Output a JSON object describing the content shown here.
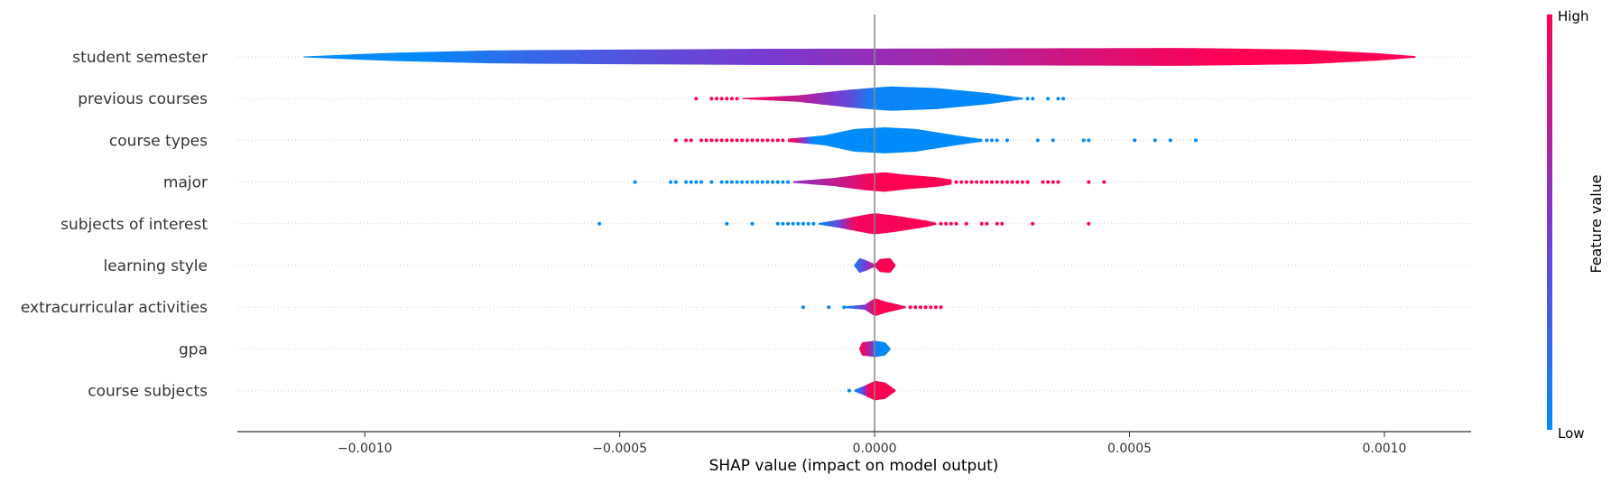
{
  "chart_data": {
    "type": "scatter",
    "subtype": "shap-violin-summary",
    "xlabel": "SHAP value (impact on model output)",
    "xlim": [
      -0.00125,
      0.00117
    ],
    "x_ticks": [
      -0.001,
      -0.0005,
      0.0,
      0.0005,
      0.001
    ],
    "x_tick_labels": [
      "−0.0010",
      "−0.0005",
      "0.0000",
      "0.0005",
      "0.0010"
    ],
    "grid": "dotted horizontal lines per feature",
    "colorbar": {
      "title": "Feature value",
      "high_label": "High",
      "low_label": "Low",
      "low_color": "#008bfb",
      "high_color": "#ff0052"
    },
    "features": [
      {
        "name": "student semester",
        "range": [
          -0.00112,
          0.00106
        ],
        "profile": [
          [
            -0.00112,
            0.03
          ],
          [
            -0.00095,
            0.25
          ],
          [
            -0.00075,
            0.4
          ],
          [
            -0.0005,
            0.45
          ],
          [
            -0.0002,
            0.5
          ],
          [
            0.0002,
            0.52
          ],
          [
            0.0006,
            0.55
          ],
          [
            0.00085,
            0.45
          ],
          [
            0.001,
            0.2
          ],
          [
            0.00106,
            0.05
          ]
        ],
        "color_profile": [
          [
            -0.00112,
            0.0
          ],
          [
            -0.0009,
            0.0
          ],
          [
            -0.0007,
            0.2
          ],
          [
            -0.0004,
            0.4
          ],
          [
            -0.0001,
            0.55
          ],
          [
            0.0002,
            0.7
          ],
          [
            0.0005,
            0.9
          ],
          [
            0.0007,
            1.0
          ],
          [
            0.00106,
            1.0
          ]
        ],
        "points": []
      },
      {
        "name": "previous courses",
        "range": [
          -0.00026,
          0.00029
        ],
        "profile": [
          [
            -0.00026,
            0.03
          ],
          [
            -0.00015,
            0.2
          ],
          [
            -5e-05,
            0.55
          ],
          [
            3e-05,
            0.75
          ],
          [
            0.00012,
            0.65
          ],
          [
            0.00022,
            0.35
          ],
          [
            0.00029,
            0.05
          ]
        ],
        "color_profile": [
          [
            -0.00026,
            1.0
          ],
          [
            -0.00015,
            0.75
          ],
          [
            -5e-05,
            0.4
          ],
          [
            0.0,
            0.05
          ],
          [
            0.00029,
            0.0
          ]
        ],
        "points": [
          [
            -0.00035,
            1
          ],
          [
            -0.00032,
            1
          ],
          [
            -0.00031,
            1
          ],
          [
            -0.0003,
            1
          ],
          [
            -0.00029,
            1
          ],
          [
            -0.00028,
            1
          ],
          [
            -0.00027,
            1
          ],
          [
            0.0003,
            0
          ],
          [
            0.00031,
            0
          ],
          [
            0.00034,
            0
          ],
          [
            0.00036,
            0
          ],
          [
            0.00037,
            0
          ]
        ]
      },
      {
        "name": "course types",
        "range": [
          -0.00017,
          0.00021
        ],
        "profile": [
          [
            -0.00017,
            0.1
          ],
          [
            -0.0001,
            0.3
          ],
          [
            -4e-05,
            0.7
          ],
          [
            2e-05,
            0.8
          ],
          [
            8e-05,
            0.7
          ],
          [
            0.00016,
            0.3
          ],
          [
            0.00021,
            0.08
          ]
        ],
        "color_profile": [
          [
            -0.00017,
            1.0
          ],
          [
            -0.00015,
            0.8
          ],
          [
            -0.00012,
            0.0
          ],
          [
            0.00021,
            0.0
          ]
        ],
        "points": [
          [
            -0.00039,
            1
          ],
          [
            -0.00037,
            1
          ],
          [
            -0.00036,
            1
          ],
          [
            -0.00034,
            1
          ],
          [
            -0.00033,
            1
          ],
          [
            -0.00032,
            1
          ],
          [
            -0.00031,
            1
          ],
          [
            -0.0003,
            1
          ],
          [
            -0.00029,
            1
          ],
          [
            -0.00028,
            1
          ],
          [
            -0.00027,
            1
          ],
          [
            -0.00026,
            1
          ],
          [
            -0.00025,
            1
          ],
          [
            -0.00024,
            1
          ],
          [
            -0.00023,
            1
          ],
          [
            -0.00022,
            1
          ],
          [
            -0.00021,
            1
          ],
          [
            -0.0002,
            1
          ],
          [
            -0.00019,
            1
          ],
          [
            -0.00018,
            1
          ],
          [
            0.00022,
            0
          ],
          [
            0.00023,
            0
          ],
          [
            0.00024,
            0
          ],
          [
            0.00026,
            0
          ],
          [
            0.00032,
            0
          ],
          [
            0.00035,
            0
          ],
          [
            0.00041,
            0
          ],
          [
            0.00042,
            0
          ],
          [
            0.00051,
            0
          ],
          [
            0.00055,
            0
          ],
          [
            0.00058,
            0
          ],
          [
            0.00063,
            0
          ]
        ]
      },
      {
        "name": "major",
        "range": [
          -0.00016,
          0.00015
        ],
        "profile": [
          [
            -0.00016,
            0.05
          ],
          [
            -8e-05,
            0.25
          ],
          [
            -2e-05,
            0.5
          ],
          [
            2e-05,
            0.6
          ],
          [
            6e-05,
            0.45
          ],
          [
            0.00012,
            0.3
          ],
          [
            0.00015,
            0.15
          ]
        ],
        "color_profile": [
          [
            -0.00016,
            0.55
          ],
          [
            -0.0001,
            0.7
          ],
          [
            -4e-05,
            0.85
          ],
          [
            0.0,
            1.0
          ],
          [
            0.00015,
            1.0
          ]
        ],
        "points": [
          [
            -0.00047,
            0
          ],
          [
            -0.0004,
            0
          ],
          [
            -0.00039,
            0
          ],
          [
            -0.00037,
            0
          ],
          [
            -0.00036,
            0
          ],
          [
            -0.00035,
            0
          ],
          [
            -0.00034,
            0
          ],
          [
            -0.00032,
            0
          ],
          [
            -0.0003,
            0
          ],
          [
            -0.00029,
            0
          ],
          [
            -0.00028,
            0
          ],
          [
            -0.00027,
            0
          ],
          [
            -0.00026,
            0
          ],
          [
            -0.00025,
            0
          ],
          [
            -0.00024,
            0
          ],
          [
            -0.00023,
            0
          ],
          [
            -0.00022,
            0
          ],
          [
            -0.00021,
            0
          ],
          [
            -0.0002,
            0
          ],
          [
            -0.00019,
            0
          ],
          [
            -0.00018,
            0
          ],
          [
            -0.00017,
            0
          ],
          [
            0.00016,
            1
          ],
          [
            0.00017,
            1
          ],
          [
            0.00018,
            1
          ],
          [
            0.00019,
            1
          ],
          [
            0.0002,
            1
          ],
          [
            0.00021,
            1
          ],
          [
            0.00022,
            1
          ],
          [
            0.00023,
            1
          ],
          [
            0.00024,
            1
          ],
          [
            0.00025,
            1
          ],
          [
            0.00026,
            1
          ],
          [
            0.00027,
            1
          ],
          [
            0.00028,
            1
          ],
          [
            0.00029,
            1
          ],
          [
            0.0003,
            1
          ],
          [
            0.00033,
            1
          ],
          [
            0.00034,
            1
          ],
          [
            0.00035,
            1
          ],
          [
            0.00036,
            1
          ],
          [
            0.00042,
            1
          ],
          [
            0.00045,
            1
          ]
        ]
      },
      {
        "name": "subjects of interest",
        "range": [
          -0.00011,
          0.00012
        ],
        "profile": [
          [
            -0.00011,
            0.05
          ],
          [
            -7e-05,
            0.25
          ],
          [
            -2e-05,
            0.55
          ],
          [
            0.0,
            0.65
          ],
          [
            4e-05,
            0.5
          ],
          [
            0.0001,
            0.2
          ],
          [
            0.00012,
            0.06
          ]
        ],
        "color_profile": [
          [
            -0.00011,
            0.0
          ],
          [
            -8e-05,
            0.3
          ],
          [
            -4e-05,
            0.95
          ],
          [
            0.00012,
            1.0
          ]
        ],
        "points": [
          [
            -0.00054,
            0
          ],
          [
            -0.00029,
            0
          ],
          [
            -0.00024,
            0
          ],
          [
            -0.00019,
            0
          ],
          [
            -0.00018,
            0
          ],
          [
            -0.00017,
            0
          ],
          [
            -0.00016,
            0
          ],
          [
            -0.00015,
            0
          ],
          [
            -0.00014,
            0
          ],
          [
            -0.00013,
            0
          ],
          [
            -0.00012,
            0
          ],
          [
            0.00013,
            1
          ],
          [
            0.00014,
            1
          ],
          [
            0.00015,
            1
          ],
          [
            0.00016,
            1
          ],
          [
            0.00018,
            1
          ],
          [
            0.00021,
            1
          ],
          [
            0.00022,
            1
          ],
          [
            0.00024,
            1
          ],
          [
            0.00025,
            1
          ],
          [
            0.00031,
            1
          ],
          [
            0.00042,
            1
          ]
        ]
      },
      {
        "name": "learning style",
        "range": [
          -4e-05,
          4e-05
        ],
        "profile": [
          [
            -4e-05,
            0.05
          ],
          [
            -3e-05,
            0.45
          ],
          [
            -2e-05,
            0.35
          ],
          [
            0.0,
            0.08
          ],
          [
            1e-05,
            0.4
          ],
          [
            3e-05,
            0.45
          ],
          [
            4e-05,
            0.05
          ]
        ],
        "color_profile": [
          [
            -4e-05,
            0.1
          ],
          [
            -2e-05,
            0.45
          ],
          [
            0.0,
            0.8
          ],
          [
            1e-05,
            1.0
          ],
          [
            4e-05,
            1.0
          ]
        ],
        "points": []
      },
      {
        "name": "extracurricular activities",
        "range": [
          -6e-05,
          6e-05
        ],
        "profile": [
          [
            -6e-05,
            0.05
          ],
          [
            -2e-05,
            0.15
          ],
          [
            0.0,
            0.55
          ],
          [
            2e-05,
            0.35
          ],
          [
            6e-05,
            0.05
          ]
        ],
        "color_profile": [
          [
            -6e-05,
            0.0
          ],
          [
            -2e-05,
            0.5
          ],
          [
            0.0,
            1.0
          ],
          [
            6e-05,
            1.0
          ]
        ],
        "points": [
          [
            -0.00014,
            0
          ],
          [
            -9e-05,
            0
          ],
          [
            -6e-05,
            0
          ],
          [
            7e-05,
            1
          ],
          [
            8e-05,
            1
          ],
          [
            9e-05,
            1
          ],
          [
            0.0001,
            1
          ],
          [
            0.00011,
            1
          ],
          [
            0.00012,
            1
          ],
          [
            0.00013,
            1
          ]
        ]
      },
      {
        "name": "gpa",
        "range": [
          -3e-05,
          3e-05
        ],
        "profile": [
          [
            -3e-05,
            0.05
          ],
          [
            -2.5e-05,
            0.4
          ],
          [
            0.0,
            0.5
          ],
          [
            2e-05,
            0.4
          ],
          [
            3e-05,
            0.05
          ]
        ],
        "color_profile": [
          [
            -3e-05,
            1.0
          ],
          [
            -1e-05,
            0.7
          ],
          [
            0.0,
            0.2
          ],
          [
            1e-05,
            0.0
          ],
          [
            3e-05,
            0.0
          ]
        ],
        "points": []
      },
      {
        "name": "course subjects",
        "range": [
          -4e-05,
          4e-05
        ],
        "profile": [
          [
            -4e-05,
            0.05
          ],
          [
            -2e-05,
            0.3
          ],
          [
            0.0,
            0.6
          ],
          [
            2e-05,
            0.5
          ],
          [
            4e-05,
            0.05
          ]
        ],
        "color_profile": [
          [
            -4e-05,
            0.0
          ],
          [
            -2.5e-05,
            0.3
          ],
          [
            -1e-05,
            1.0
          ],
          [
            4e-05,
            1.0
          ]
        ],
        "points": [
          [
            -5e-05,
            0
          ]
        ]
      }
    ]
  }
}
